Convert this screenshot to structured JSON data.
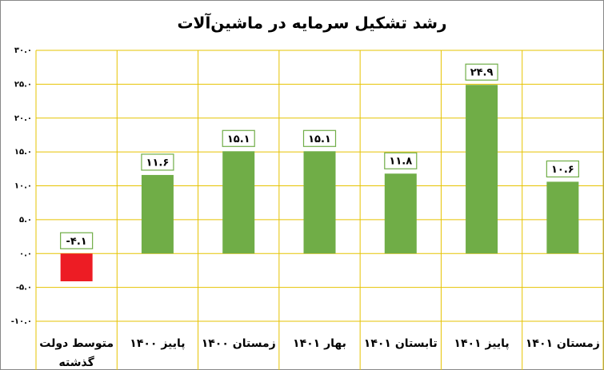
{
  "chart_data": {
    "type": "bar",
    "title": "رشد تشکیل سرمایه در ماشین‌آلات",
    "categories": [
      "متوسط دولت گذشته",
      "پاییز ۱۴۰۰",
      "زمستان ۱۴۰۰",
      "بهار ۱۴۰۱",
      "تابستان ۱۴۰۱",
      "پاییز ۱۴۰۱",
      "زمستان ۱۴۰۱"
    ],
    "values": [
      -4.1,
      11.6,
      15.1,
      15.1,
      11.8,
      24.9,
      10.6
    ],
    "value_labels": [
      "-۴.۱",
      "۱۱.۶",
      "۱۵.۱",
      "۱۵.۱",
      "۱۱.۸",
      "۲۴.۹",
      "۱۰.۶"
    ],
    "colors": [
      "#ed1c24",
      "#70ad47",
      "#70ad47",
      "#70ad47",
      "#70ad47",
      "#70ad47",
      "#70ad47"
    ],
    "ylim": [
      -10,
      30
    ],
    "yticks": [
      {
        "value": -10,
        "label": "-۱۰.۰"
      },
      {
        "value": -5,
        "label": "-۵.۰"
      },
      {
        "value": 0,
        "label": "۰.۰"
      },
      {
        "value": 5,
        "label": "۵.۰"
      },
      {
        "value": 10,
        "label": "۱۰.۰"
      },
      {
        "value": 15,
        "label": "۱۵.۰"
      },
      {
        "value": 20,
        "label": "۲۰.۰"
      },
      {
        "value": 25,
        "label": "۲۵.۰"
      },
      {
        "value": 30,
        "label": "۳۰.۰"
      }
    ],
    "grid": true
  }
}
